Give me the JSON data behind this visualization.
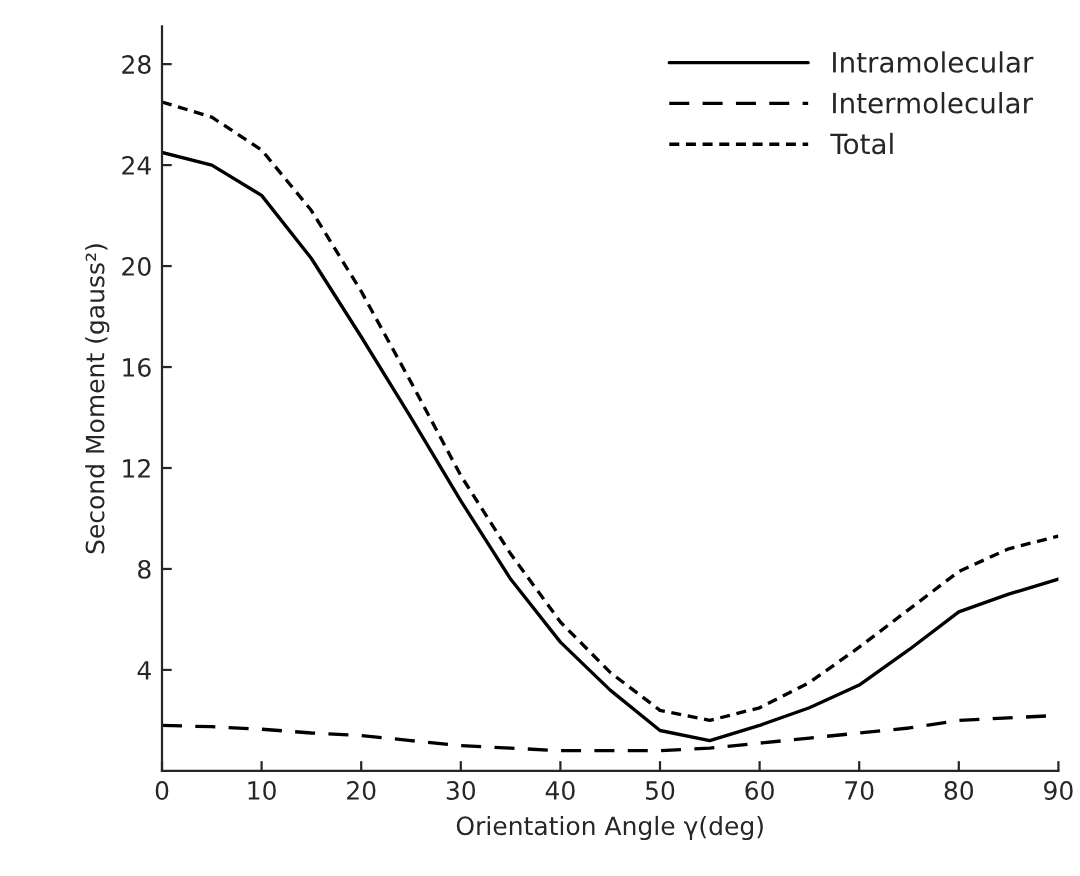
{
  "chart_data": {
    "type": "line",
    "xlabel": "Orientation Angle γ(deg)",
    "ylabel": "Second Moment (gauss²)",
    "x": [
      0,
      5,
      10,
      15,
      20,
      25,
      30,
      35,
      40,
      45,
      50,
      55,
      60,
      65,
      70,
      75,
      80,
      85,
      90
    ],
    "series": [
      {
        "name": "Intramolecular",
        "color": "#000000",
        "line_style": "solid",
        "values": [
          24.5,
          24.0,
          22.8,
          20.3,
          17.2,
          14.0,
          10.7,
          7.6,
          5.1,
          3.2,
          1.6,
          1.2,
          1.8,
          2.5,
          3.4,
          4.8,
          6.3,
          7.0,
          7.6
        ]
      },
      {
        "name": "Intermolecular",
        "color": "#000000",
        "line_style": "dashed",
        "values": [
          1.8,
          1.75,
          1.65,
          1.5,
          1.4,
          1.2,
          1.0,
          0.9,
          0.8,
          0.8,
          0.8,
          0.9,
          1.1,
          1.3,
          1.5,
          1.7,
          2.0,
          2.1,
          2.2
        ]
      },
      {
        "name": "Total",
        "color": "#000000",
        "line_style": "dotted",
        "values": [
          26.5,
          25.9,
          24.6,
          22.2,
          19.0,
          15.4,
          11.7,
          8.6,
          5.9,
          3.9,
          2.4,
          2.0,
          2.5,
          3.5,
          4.9,
          6.4,
          7.9,
          8.8,
          9.3
        ]
      }
    ],
    "xlim": [
      0,
      90
    ],
    "ylim": [
      0,
      29.5
    ],
    "xticks": [
      0,
      10,
      20,
      30,
      40,
      50,
      60,
      70,
      80,
      90
    ],
    "yticks": [
      4,
      8,
      12,
      16,
      20,
      24,
      28
    ],
    "grid": false,
    "legend": "top right",
    "marker": "none"
  }
}
